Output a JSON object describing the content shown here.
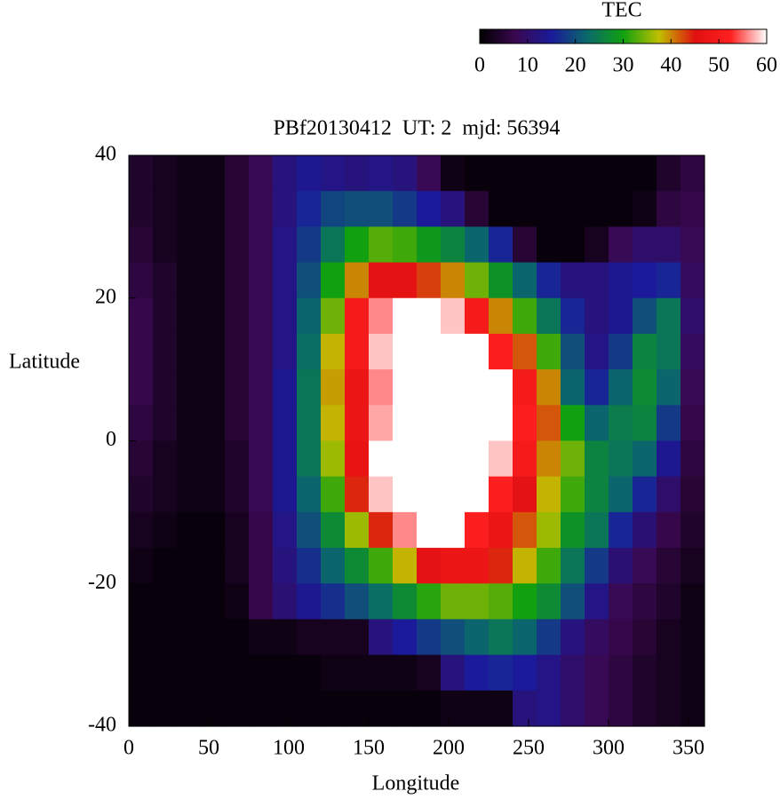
{
  "chart_data": {
    "type": "heatmap",
    "title": "PBf20130412  UT: 2  mjd: 56394",
    "xlabel": "Longitude",
    "ylabel": "Latitude",
    "xlim": [
      0,
      360
    ],
    "ylim": [
      -40,
      40
    ],
    "xticks": [
      0,
      50,
      100,
      150,
      200,
      250,
      300,
      350
    ],
    "yticks": [
      -40,
      -20,
      0,
      20,
      40
    ],
    "x": [
      7.5,
      22.5,
      37.5,
      52.5,
      67.5,
      82.5,
      97.5,
      112.5,
      127.5,
      142.5,
      157.5,
      172.5,
      187.5,
      202.5,
      217.5,
      232.5,
      247.5,
      262.5,
      277.5,
      292.5,
      307.5,
      322.5,
      337.5,
      352.5
    ],
    "y": [
      37.5,
      32.5,
      27.5,
      22.5,
      17.5,
      12.5,
      7.5,
      2.5,
      -2.5,
      -7.5,
      -12.5,
      -17.5,
      -22.5,
      -27.5,
      -32.5,
      -37.5
    ],
    "values": [
      [
        4,
        3,
        2,
        2,
        5,
        8,
        12,
        14,
        13,
        12,
        13,
        12,
        8,
        2,
        1,
        1,
        1,
        1,
        1,
        1,
        1,
        1,
        4,
        6
      ],
      [
        4,
        3,
        2,
        2,
        5,
        8,
        12,
        16,
        19,
        20,
        20,
        18,
        15,
        12,
        5,
        1,
        1,
        1,
        1,
        1,
        1,
        2,
        6,
        7
      ],
      [
        5,
        3,
        2,
        2,
        5,
        8,
        13,
        18,
        24,
        30,
        33,
        32,
        29,
        26,
        22,
        16,
        5,
        1,
        1,
        3,
        8,
        10,
        10,
        8
      ],
      [
        6,
        4,
        2,
        2,
        5,
        8,
        13,
        20,
        30,
        40,
        46,
        46,
        43,
        40,
        34,
        28,
        22,
        16,
        12,
        12,
        14,
        15,
        16,
        9
      ],
      [
        7,
        4,
        2,
        2,
        5,
        8,
        13,
        22,
        34,
        50,
        56,
        60,
        60,
        58,
        50,
        40,
        32,
        24,
        16,
        12,
        14,
        20,
        24,
        10
      ],
      [
        7,
        4,
        2,
        2,
        5,
        8,
        13,
        23,
        38,
        50,
        58,
        60,
        60,
        60,
        60,
        52,
        42,
        32,
        20,
        13,
        18,
        26,
        24,
        9
      ],
      [
        7,
        4,
        2,
        2,
        5,
        8,
        14,
        24,
        39,
        48,
        56,
        60,
        60,
        60,
        60,
        60,
        50,
        40,
        22,
        16,
        22,
        27,
        22,
        8
      ],
      [
        6,
        4,
        2,
        2,
        5,
        8,
        14,
        24,
        38,
        48,
        57,
        60,
        60,
        60,
        60,
        60,
        52,
        42,
        30,
        22,
        25,
        26,
        18,
        7
      ],
      [
        5,
        3,
        2,
        2,
        4,
        8,
        14,
        24,
        36,
        47,
        60,
        60,
        60,
        60,
        60,
        58,
        50,
        40,
        34,
        26,
        24,
        22,
        14,
        6
      ],
      [
        4,
        3,
        2,
        2,
        4,
        8,
        14,
        22,
        32,
        44,
        58,
        60,
        60,
        60,
        60,
        52,
        46,
        38,
        32,
        26,
        22,
        16,
        10,
        5
      ],
      [
        3,
        2,
        1,
        1,
        3,
        7,
        13,
        20,
        27,
        36,
        44,
        56,
        60,
        60,
        52,
        48,
        42,
        36,
        28,
        24,
        16,
        11,
        7,
        4
      ],
      [
        2,
        1,
        1,
        1,
        3,
        7,
        12,
        17,
        22,
        27,
        32,
        38,
        46,
        48,
        48,
        44,
        38,
        32,
        24,
        18,
        11,
        8,
        5,
        3
      ],
      [
        1,
        1,
        1,
        1,
        2,
        7,
        11,
        14,
        17,
        20,
        23,
        27,
        31,
        34,
        34,
        33,
        30,
        27,
        20,
        13,
        8,
        6,
        4,
        2
      ],
      [
        1,
        1,
        1,
        1,
        1,
        2,
        2,
        3,
        3,
        3,
        12,
        15,
        18,
        20,
        22,
        24,
        22,
        18,
        12,
        9,
        7,
        5,
        3,
        2
      ],
      [
        1,
        1,
        1,
        1,
        1,
        1,
        1,
        1,
        2,
        2,
        2,
        2,
        3,
        12,
        15,
        16,
        15,
        13,
        10,
        8,
        6,
        4,
        3,
        2
      ],
      [
        1,
        1,
        1,
        1,
        1,
        1,
        1,
        1,
        1,
        1,
        1,
        1,
        1,
        2,
        2,
        2,
        12,
        13,
        10,
        8,
        6,
        4,
        3,
        2
      ]
    ],
    "colorbar": {
      "label": "TEC",
      "lim": [
        0,
        60
      ],
      "ticks": [
        0,
        10,
        20,
        30,
        40,
        50,
        60
      ]
    },
    "colormap": [
      "#000000",
      "#3a0850",
      "#1a1a9a",
      "#0a6a6a",
      "#10a010",
      "#c0c000",
      "#e01010",
      "#ff2020",
      "#ffffff"
    ]
  }
}
